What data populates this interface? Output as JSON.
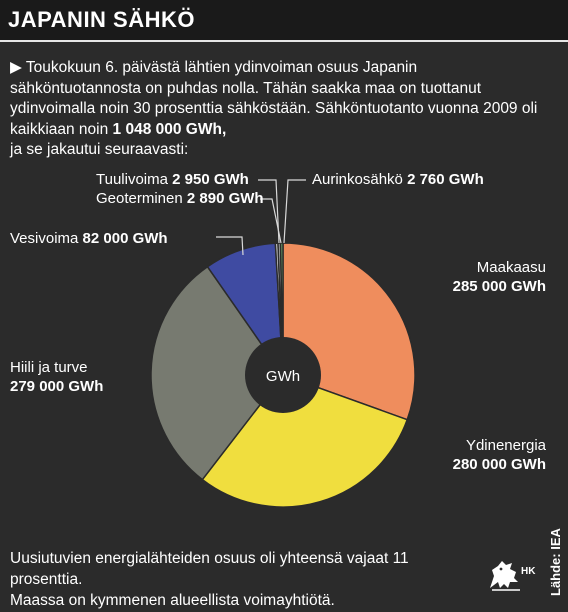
{
  "header": {
    "title": "JAPANIN SÄHKÖ"
  },
  "intro": {
    "bullet": "▶",
    "text_before": "Toukokuun 6. päivästä lähtien ydinvoiman osuus Japanin sähköntuotannosta on puhdas nolla. Tähän saakka maa on tuottanut ydinvoimalla noin 30 prosenttia sähköstään. Sähköntuotanto vuonna 2009 oli kaikkiaan noin ",
    "total": "1 048 000 GWh,",
    "text_after": "ja se jakautui seuraavasti:"
  },
  "chart_data": {
    "type": "pie",
    "variant": "donut",
    "center_label": "GWh",
    "segments": [
      {
        "name": "Maakaasu",
        "value": 285000,
        "value_label": "285 000 GWh",
        "color": "#ef8d5d"
      },
      {
        "name": "Ydinenergia",
        "value": 280000,
        "value_label": "280 000 GWh",
        "color": "#f0de3e"
      },
      {
        "name": "Hiili ja turve",
        "value": 279000,
        "value_label": "279 000 GWh",
        "color": "#777a70"
      },
      {
        "name": "Vesivoima",
        "value": 82000,
        "value_label": "82 000 GWh",
        "color": "#3f4ba2"
      },
      {
        "name": "Tuulivoima",
        "value": 2950,
        "value_label": "2 950 GWh",
        "color": "#d8d8d8"
      },
      {
        "name": "Geoterminen",
        "value": 2890,
        "value_label": "2 890 GWh",
        "color": "#a5a5a5"
      },
      {
        "name": "Aurinkosähkö",
        "value": 2760,
        "value_label": "2 760 GWh",
        "color": "#6fa86d"
      }
    ]
  },
  "colors": {
    "background": "#2b2b2b",
    "title_bar": "#1a1a1a",
    "donut_hole": "#2b2b2b",
    "leader_lines": "#d9d9d9",
    "text": "#ffffff"
  },
  "footer": {
    "line1": "Uusiutuvien energialähteiden osuus oli yhteensä vajaat 11 prosenttia.",
    "line2": "Maassa on kymmenen alueellista voimayhtiötä."
  },
  "source": "Lähde: IEA",
  "logo": {
    "text": "HK",
    "icon": "lion-emblem-icon"
  }
}
